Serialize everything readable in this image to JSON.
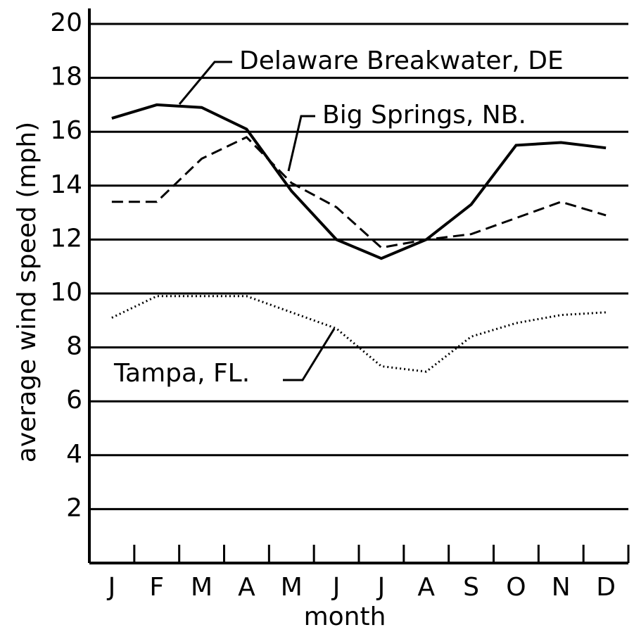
{
  "chart_data": {
    "type": "line",
    "xlabel": "month",
    "ylabel": "average wind speed (mph)",
    "categories": [
      "J",
      "F",
      "M",
      "A",
      "M",
      "J",
      "J",
      "A",
      "S",
      "O",
      "N",
      "D"
    ],
    "series": [
      {
        "name": "Delaware Breakwater, DE",
        "color": "#000000",
        "linestyle": "solid",
        "values": [
          16.5,
          17,
          16.9,
          16.1,
          13.8,
          12,
          11.3,
          12,
          13.3,
          15.5,
          15.6,
          15.4
        ]
      },
      {
        "name": "Big Springs, NB.",
        "color": "#000000",
        "linestyle": "dashed",
        "values": [
          13.4,
          13.4,
          15,
          15.8,
          14.1,
          13.2,
          11.7,
          12,
          12.2,
          12.8,
          13.4,
          12.9
        ]
      },
      {
        "name": "Tampa, FL.",
        "color": "#000000",
        "linestyle": "dotted",
        "values": [
          9.1,
          9.9,
          9.9,
          9.9,
          9.3,
          8.7,
          7.3,
          7.1,
          8.4,
          8.9,
          9.2,
          9.3
        ]
      }
    ],
    "ylim": [
      0,
      20
    ],
    "yticks": [
      2,
      4,
      6,
      8,
      10,
      12,
      14,
      16,
      18,
      20
    ],
    "grid": true
  }
}
